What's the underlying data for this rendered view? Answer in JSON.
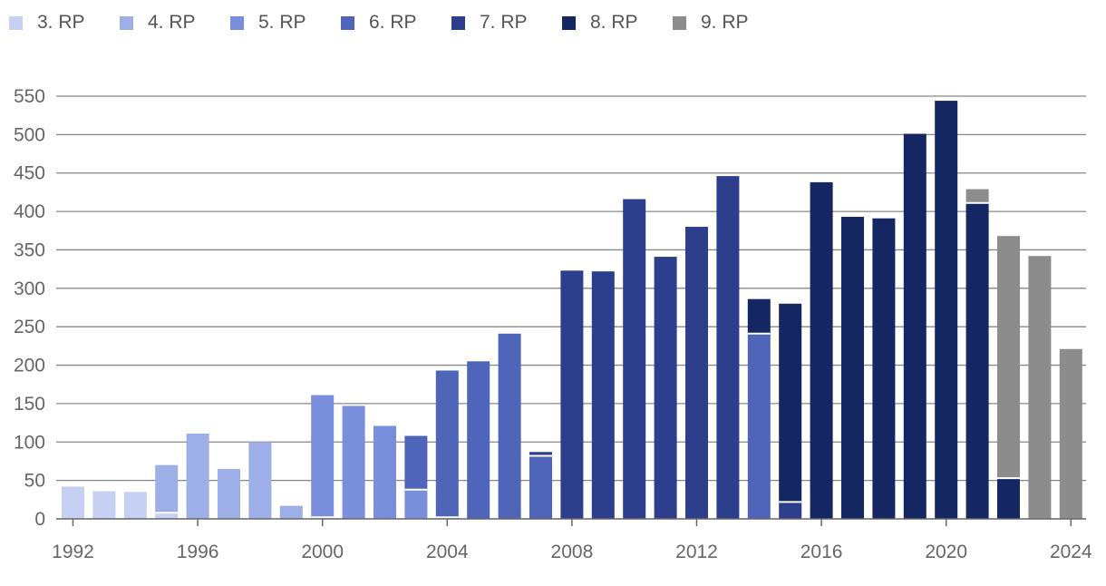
{
  "chart_data": {
    "type": "bar",
    "stacked": true,
    "title": "",
    "xlabel": "",
    "ylabel": "",
    "ylim": [
      0,
      550
    ],
    "yticks": [
      0,
      50,
      100,
      150,
      200,
      250,
      300,
      350,
      400,
      450,
      500,
      550
    ],
    "xticks": [
      "1992",
      "1996",
      "2000",
      "2004",
      "2008",
      "2012",
      "2016",
      "2020",
      "2024"
    ],
    "grid": true,
    "legend_position": "top-left",
    "categories": [
      "1992",
      "1993",
      "1994",
      "1995",
      "1996",
      "1997",
      "1998",
      "1999",
      "2000",
      "2001",
      "2002",
      "2003",
      "2004",
      "2005",
      "2006",
      "2007",
      "2008",
      "2009",
      "2010",
      "2011",
      "2012",
      "2013",
      "2014",
      "2015",
      "2016",
      "2017",
      "2018",
      "2019",
      "2020",
      "2021",
      "2022",
      "2023",
      "2024"
    ],
    "series": [
      {
        "name": "3. RP",
        "color": "#c5d0f2",
        "values": [
          42,
          36,
          35,
          8,
          0,
          0,
          0,
          0,
          0,
          0,
          0,
          0,
          0,
          0,
          0,
          0,
          0,
          0,
          0,
          0,
          0,
          0,
          0,
          0,
          0,
          0,
          0,
          0,
          0,
          0,
          0,
          0,
          0
        ]
      },
      {
        "name": "4. RP",
        "color": "#9eaee6",
        "values": [
          0,
          0,
          0,
          62,
          111,
          65,
          100,
          17,
          2,
          0,
          0,
          0,
          0,
          0,
          0,
          0,
          0,
          0,
          0,
          0,
          0,
          0,
          0,
          0,
          0,
          0,
          0,
          0,
          0,
          0,
          0,
          0,
          0
        ]
      },
      {
        "name": "5. RP",
        "color": "#7a8fdb",
        "values": [
          0,
          0,
          0,
          0,
          0,
          0,
          0,
          0,
          159,
          147,
          121,
          38,
          2,
          0,
          0,
          0,
          0,
          0,
          0,
          0,
          0,
          0,
          0,
          0,
          0,
          0,
          0,
          0,
          0,
          0,
          0,
          0,
          0
        ]
      },
      {
        "name": "6. RP",
        "color": "#4f65ba",
        "values": [
          0,
          0,
          0,
          0,
          0,
          0,
          0,
          0,
          0,
          0,
          0,
          70,
          191,
          205,
          241,
          82,
          0,
          0,
          0,
          0,
          0,
          0,
          241,
          0,
          0,
          0,
          0,
          0,
          0,
          0,
          0,
          0,
          0
        ]
      },
      {
        "name": "7. RP",
        "color": "#2c3e8c",
        "values": [
          0,
          0,
          0,
          0,
          0,
          0,
          0,
          0,
          0,
          0,
          0,
          0,
          0,
          0,
          0,
          5,
          323,
          322,
          416,
          341,
          380,
          446,
          0,
          22,
          0,
          0,
          0,
          0,
          0,
          0,
          0,
          0,
          0
        ]
      },
      {
        "name": "8. RP",
        "color": "#152763",
        "values": [
          0,
          0,
          0,
          0,
          0,
          0,
          0,
          0,
          0,
          0,
          0,
          0,
          0,
          0,
          0,
          0,
          0,
          0,
          0,
          0,
          0,
          0,
          45,
          258,
          438,
          393,
          391,
          501,
          544,
          411,
          53,
          0,
          0
        ]
      },
      {
        "name": "9. RP",
        "color": "#8c8c8c",
        "values": [
          0,
          0,
          0,
          0,
          0,
          0,
          0,
          0,
          0,
          0,
          0,
          0,
          0,
          0,
          0,
          0,
          0,
          0,
          0,
          0,
          0,
          0,
          0,
          0,
          0,
          0,
          0,
          0,
          0,
          18,
          315,
          342,
          221
        ]
      }
    ],
    "colors": {
      "grid": "#888888",
      "axis": "#666666",
      "text": "#555555",
      "separator": "#ffffff"
    }
  }
}
